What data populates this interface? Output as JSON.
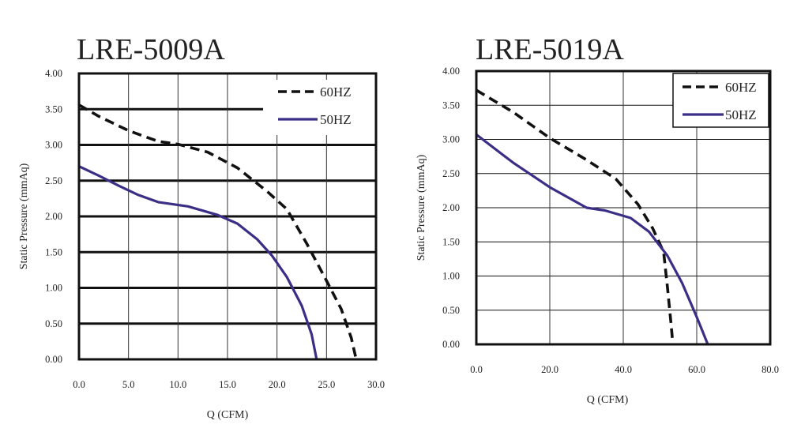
{
  "chart_data": [
    {
      "type": "line",
      "title": "LRE-5009A",
      "xlabel": "Q (CFM)",
      "ylabel": "Static Pressure (mmAq)",
      "xlim": [
        0,
        30
      ],
      "ylim": [
        0,
        4
      ],
      "xticks": [
        "0.0",
        "5.0",
        "10.0",
        "15.0",
        "20.0",
        "25.0",
        "30.0"
      ],
      "yticks": [
        "0.00",
        "0.50",
        "1.00",
        "1.50",
        "2.00",
        "2.50",
        "3.00",
        "3.50",
        "4.00"
      ],
      "grid": true,
      "legend": "top-right",
      "series": [
        {
          "name": "60HZ",
          "style": "dashed",
          "color": "#111111",
          "points": [
            [
              0,
              3.56
            ],
            [
              2,
              3.4
            ],
            [
              5,
              3.2
            ],
            [
              8,
              3.05
            ],
            [
              10,
              3.01
            ],
            [
              13,
              2.9
            ],
            [
              16,
              2.68
            ],
            [
              19,
              2.35
            ],
            [
              21,
              2.1
            ],
            [
              23,
              1.62
            ],
            [
              25,
              1.1
            ],
            [
              26.5,
              0.7
            ],
            [
              27.5,
              0.3
            ],
            [
              28,
              0
            ]
          ]
        },
        {
          "name": "50HZ",
          "style": "solid",
          "color": "#3a2e86",
          "points": [
            [
              0,
              2.7
            ],
            [
              2,
              2.57
            ],
            [
              4,
              2.43
            ],
            [
              6,
              2.3
            ],
            [
              8,
              2.2
            ],
            [
              11,
              2.14
            ],
            [
              14,
              2.02
            ],
            [
              16,
              1.9
            ],
            [
              18,
              1.68
            ],
            [
              19.5,
              1.45
            ],
            [
              21,
              1.15
            ],
            [
              22.5,
              0.75
            ],
            [
              23.5,
              0.35
            ],
            [
              24,
              0
            ]
          ]
        }
      ]
    },
    {
      "type": "line",
      "title": "LRE-5019A",
      "xlabel": "Q (CFM)",
      "ylabel": "Static Pressure (mmAq)",
      "xlim": [
        0,
        80
      ],
      "ylim": [
        0,
        4
      ],
      "xticks": [
        "0.0",
        "20.0",
        "40.0",
        "60.0",
        "80.0"
      ],
      "yticks": [
        "0.00",
        "0.50",
        "1.00",
        "1.50",
        "2.00",
        "2.50",
        "3.00",
        "3.50",
        "4.00"
      ],
      "grid": true,
      "legend": "top-right",
      "series": [
        {
          "name": "60HZ",
          "style": "dashed",
          "color": "#111111",
          "points": [
            [
              0,
              3.72
            ],
            [
              10,
              3.4
            ],
            [
              20,
              3.02
            ],
            [
              30,
              2.7
            ],
            [
              38,
              2.42
            ],
            [
              44,
              2.05
            ],
            [
              48,
              1.7
            ],
            [
              51,
              1.35
            ],
            [
              52,
              0.85
            ],
            [
              53,
              0.3
            ],
            [
              53.5,
              0
            ]
          ]
        },
        {
          "name": "50HZ",
          "style": "solid",
          "color": "#3a2e86",
          "points": [
            [
              0,
              3.07
            ],
            [
              10,
              2.66
            ],
            [
              20,
              2.3
            ],
            [
              30,
              2.0
            ],
            [
              35,
              1.96
            ],
            [
              42,
              1.85
            ],
            [
              47,
              1.65
            ],
            [
              52,
              1.3
            ],
            [
              56,
              0.9
            ],
            [
              60,
              0.4
            ],
            [
              63,
              0
            ]
          ]
        }
      ]
    }
  ]
}
